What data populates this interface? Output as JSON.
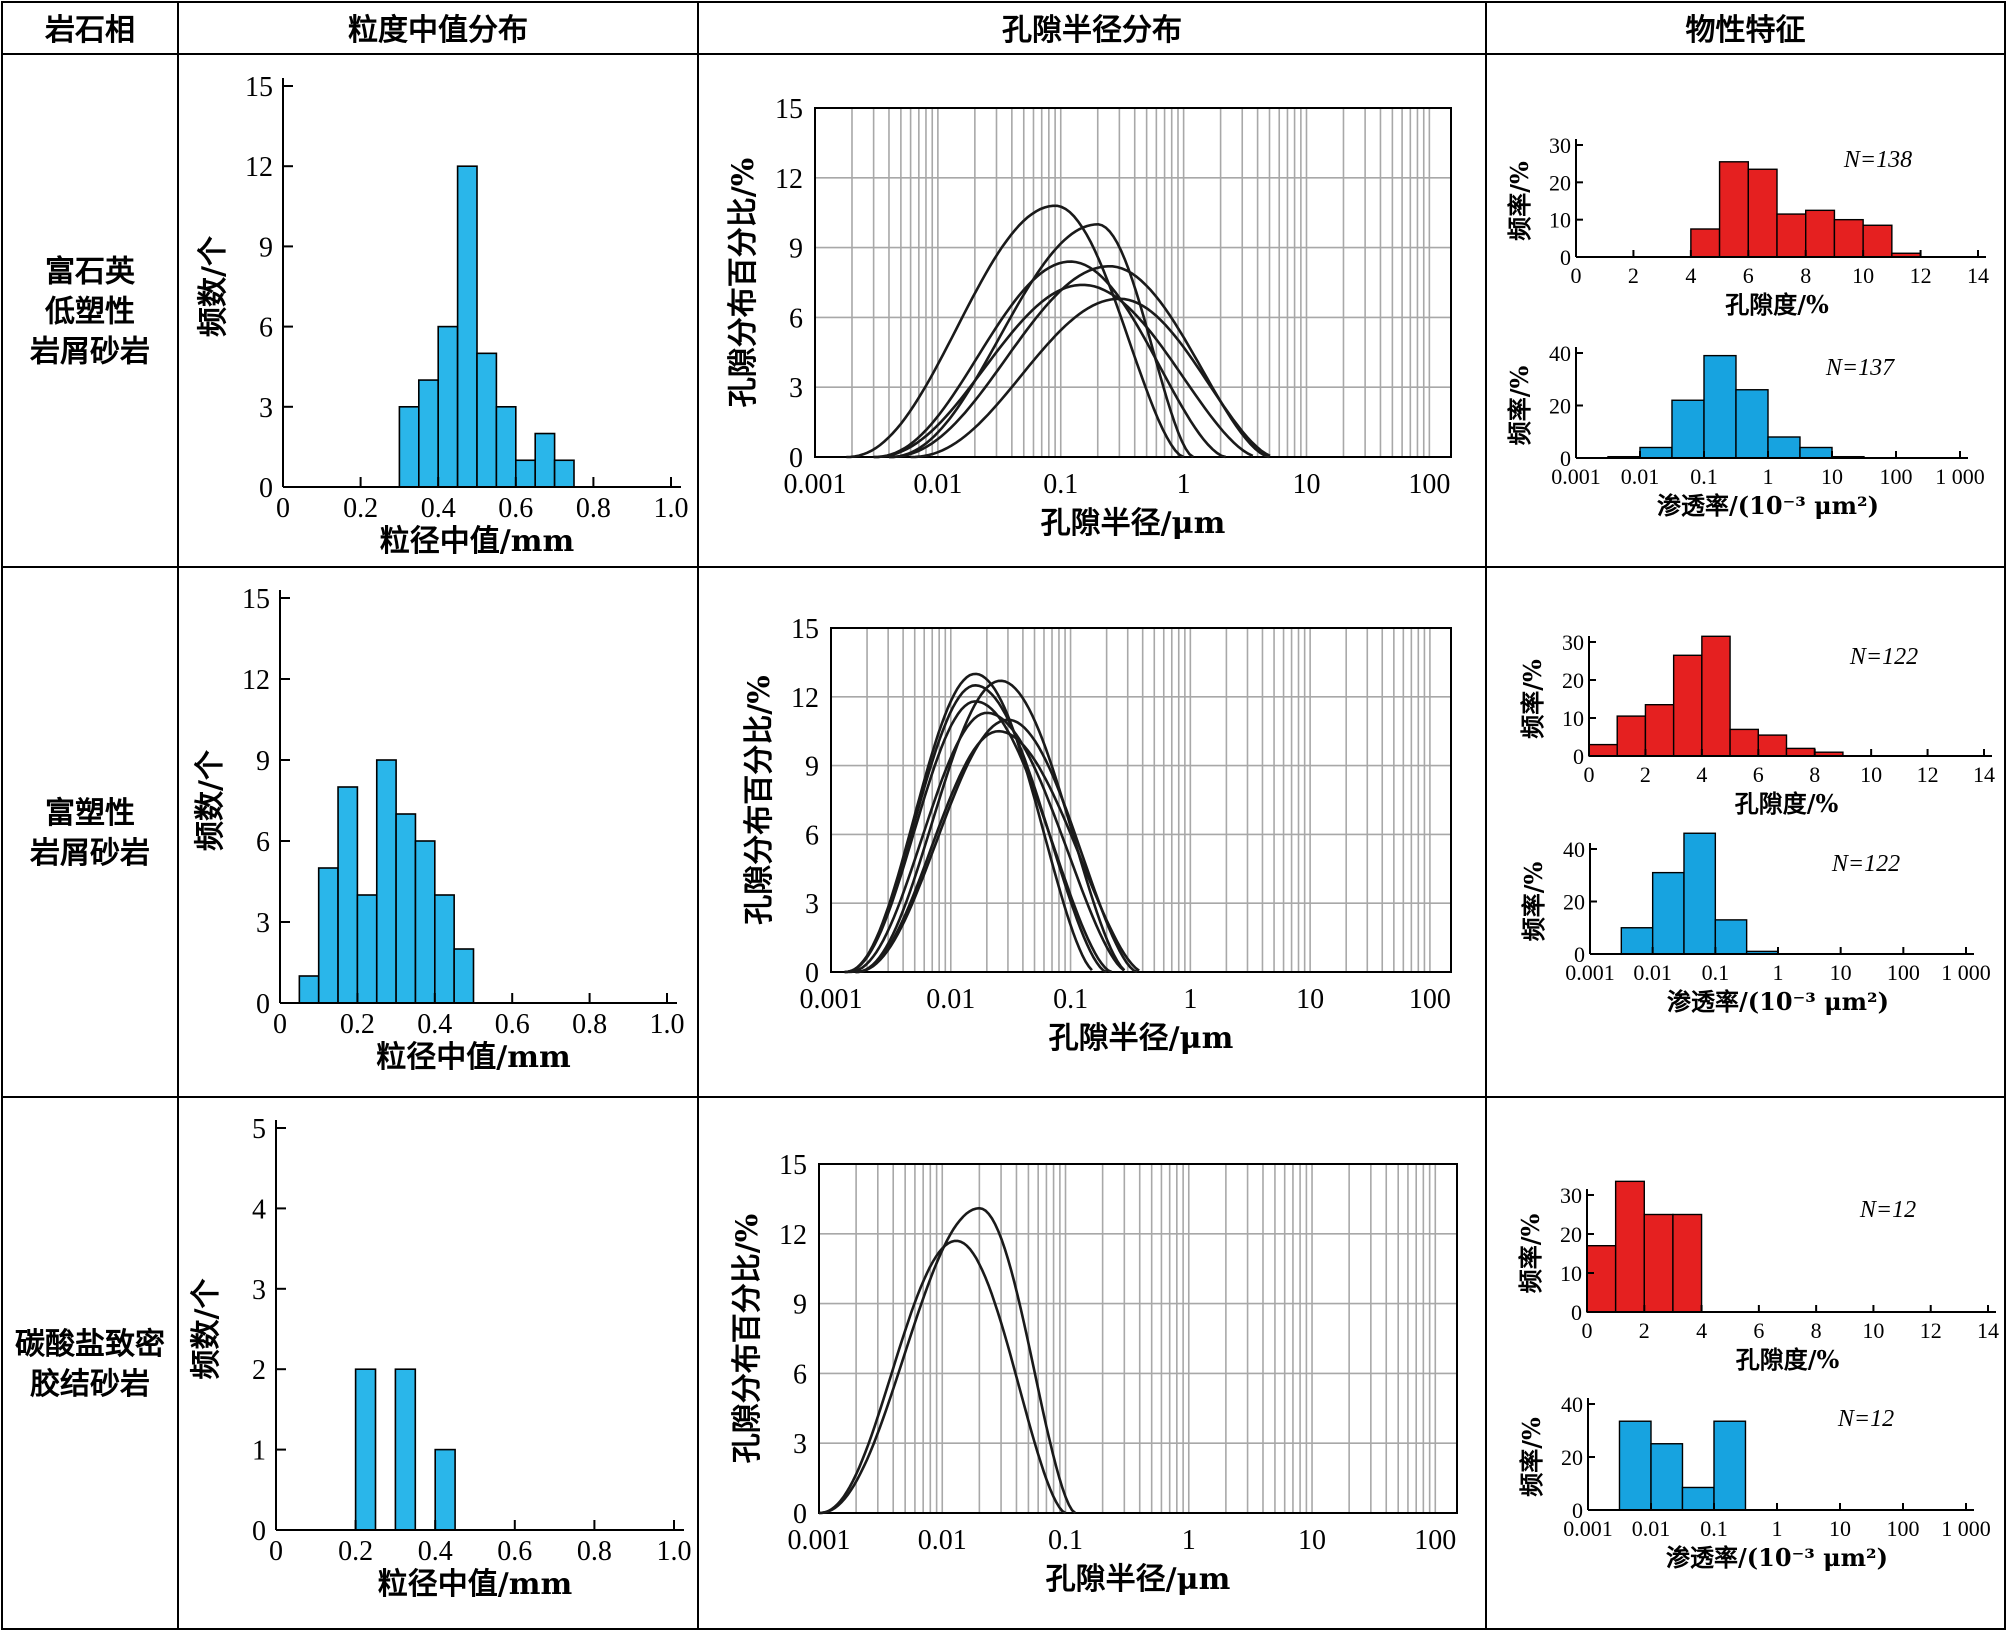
{
  "table": {
    "headers": [
      "岩石相",
      "粒度中值分布",
      "孔隙半径分布",
      "物性特征"
    ]
  },
  "rows": [
    {
      "facies_lines": [
        "富石英",
        "低塑性",
        "岩屑砂岩"
      ],
      "grain": {
        "type": "bar",
        "xlabel": "粒径中值/mm",
        "ylabel": "频数/个",
        "xlim": [
          0,
          1.0
        ],
        "ylim": [
          0,
          15
        ],
        "xticks": [
          "0",
          "0.2",
          "0.4",
          "0.6",
          "0.8",
          "1.0"
        ],
        "yticks": [
          "0",
          "3",
          "6",
          "9",
          "12",
          "15"
        ],
        "bin_width": 0.05,
        "bins": [
          {
            "x": 0.3,
            "y": 3
          },
          {
            "x": 0.35,
            "y": 4
          },
          {
            "x": 0.4,
            "y": 6
          },
          {
            "x": 0.45,
            "y": 12
          },
          {
            "x": 0.5,
            "y": 5
          },
          {
            "x": 0.55,
            "y": 3
          },
          {
            "x": 0.6,
            "y": 1
          },
          {
            "x": 0.65,
            "y": 2
          },
          {
            "x": 0.7,
            "y": 1
          }
        ],
        "color": "#2ab6ea"
      },
      "pore": {
        "type": "line",
        "xlabel": "孔隙半径/μm",
        "ylabel": "孔隙分布百分比/%",
        "xscale": "log",
        "xlim": [
          0.001,
          150
        ],
        "ylim": [
          0,
          15
        ],
        "xticks": [
          "0.001",
          "0.01",
          "0.1",
          "1",
          "10",
          "100"
        ],
        "yticks": [
          "0",
          "3",
          "6",
          "9",
          "12",
          "15"
        ],
        "curves": [
          {
            "peak_x": 0.09,
            "peak_y": 10.8,
            "lo": 0.0018,
            "hi": 1.0
          },
          {
            "peak_x": 0.2,
            "peak_y": 10.0,
            "lo": 0.004,
            "hi": 1.2
          },
          {
            "peak_x": 0.12,
            "peak_y": 8.4,
            "lo": 0.003,
            "hi": 2.2
          },
          {
            "peak_x": 0.25,
            "peak_y": 8.2,
            "lo": 0.004,
            "hi": 5.0
          },
          {
            "peak_x": 0.15,
            "peak_y": 7.4,
            "lo": 0.003,
            "hi": 4.0
          },
          {
            "peak_x": 0.3,
            "peak_y": 6.8,
            "lo": 0.006,
            "hi": 5.5
          }
        ]
      },
      "porosity": {
        "type": "bar",
        "xlabel": "孔隙度/%",
        "ylabel": "频率/%",
        "n_label": "N=138",
        "xlim": [
          0,
          14
        ],
        "ylim": [
          0,
          30
        ],
        "xticks": [
          "0",
          "2",
          "4",
          "6",
          "8",
          "10",
          "12",
          "14"
        ],
        "yticks": [
          "0",
          "10",
          "20",
          "30"
        ],
        "bin_width": 1,
        "bins": [
          {
            "x": 4,
            "y": 7.5
          },
          {
            "x": 5,
            "y": 25.5
          },
          {
            "x": 6,
            "y": 23.5
          },
          {
            "x": 7,
            "y": 11.5
          },
          {
            "x": 8,
            "y": 12.5
          },
          {
            "x": 9,
            "y": 10
          },
          {
            "x": 10,
            "y": 8.5
          },
          {
            "x": 11,
            "y": 1
          }
        ],
        "color": "#e52020"
      },
      "perm": {
        "type": "bar",
        "xlabel": "渗透率/(10⁻³ μm²)",
        "ylabel": "频率/%",
        "n_label": "N=137",
        "xscale": "log",
        "xlim": [
          0.001,
          1000
        ],
        "ylim": [
          0,
          40
        ],
        "xticks": [
          "0.001",
          "0.01",
          "0.1",
          "1",
          "10",
          "100",
          "1 000"
        ],
        "yticks": [
          "0",
          "20",
          "40"
        ],
        "bins": [
          {
            "lo": 0.00316,
            "hi": 0.01,
            "y": 0.5
          },
          {
            "lo": 0.01,
            "hi": 0.0316,
            "y": 4
          },
          {
            "lo": 0.0316,
            "hi": 0.1,
            "y": 22
          },
          {
            "lo": 0.1,
            "hi": 0.316,
            "y": 39
          },
          {
            "lo": 0.316,
            "hi": 1,
            "y": 26
          },
          {
            "lo": 1,
            "hi": 3.16,
            "y": 8
          },
          {
            "lo": 3.16,
            "hi": 10,
            "y": 4
          },
          {
            "lo": 10,
            "hi": 31.6,
            "y": 0.5
          }
        ],
        "color": "#17a3e0"
      }
    },
    {
      "facies_lines": [
        "富塑性",
        "岩屑砂岩"
      ],
      "grain": {
        "type": "bar",
        "xlabel": "粒径中值/mm",
        "ylabel": "频数/个",
        "xlim": [
          0,
          1.0
        ],
        "ylim": [
          0,
          15
        ],
        "xticks": [
          "0",
          "0.2",
          "0.4",
          "0.6",
          "0.8",
          "1.0"
        ],
        "yticks": [
          "0",
          "3",
          "6",
          "9",
          "12",
          "15"
        ],
        "bin_width": 0.05,
        "bins": [
          {
            "x": 0.05,
            "y": 1
          },
          {
            "x": 0.1,
            "y": 5
          },
          {
            "x": 0.15,
            "y": 8
          },
          {
            "x": 0.2,
            "y": 4
          },
          {
            "x": 0.25,
            "y": 9
          },
          {
            "x": 0.3,
            "y": 7
          },
          {
            "x": 0.35,
            "y": 6
          },
          {
            "x": 0.4,
            "y": 4
          },
          {
            "x": 0.45,
            "y": 2
          }
        ],
        "color": "#2ab6ea"
      },
      "pore": {
        "type": "line",
        "xlabel": "孔隙半径/μm",
        "ylabel": "孔隙分布百分比/%",
        "xscale": "log",
        "xlim": [
          0.001,
          150
        ],
        "ylim": [
          0,
          15
        ],
        "xticks": [
          "0.001",
          "0.01",
          "0.1",
          "1",
          "10",
          "100"
        ],
        "yticks": [
          "0",
          "3",
          "6",
          "9",
          "12",
          "15"
        ],
        "curves": [
          {
            "peak_x": 0.016,
            "peak_y": 13.0,
            "lo": 0.0013,
            "hi": 0.16
          },
          {
            "peak_x": 0.016,
            "peak_y": 12.5,
            "lo": 0.0013,
            "hi": 0.2
          },
          {
            "peak_x": 0.026,
            "peak_y": 12.7,
            "lo": 0.0016,
            "hi": 0.3
          },
          {
            "peak_x": 0.016,
            "peak_y": 11.8,
            "lo": 0.0013,
            "hi": 0.22
          },
          {
            "peak_x": 0.02,
            "peak_y": 11.3,
            "lo": 0.0014,
            "hi": 0.3
          },
          {
            "peak_x": 0.03,
            "peak_y": 11.0,
            "lo": 0.0016,
            "hi": 0.36
          },
          {
            "peak_x": 0.025,
            "peak_y": 10.5,
            "lo": 0.0016,
            "hi": 0.4
          }
        ]
      },
      "porosity": {
        "type": "bar",
        "xlabel": "孔隙度/%",
        "ylabel": "频率/%",
        "n_label": "N=122",
        "xlim": [
          0,
          14
        ],
        "ylim": [
          0,
          30
        ],
        "xticks": [
          "0",
          "2",
          "4",
          "6",
          "8",
          "10",
          "12",
          "14"
        ],
        "yticks": [
          "0",
          "10",
          "20",
          "30"
        ],
        "bin_width": 1,
        "bins": [
          {
            "x": 0,
            "y": 3
          },
          {
            "x": 1,
            "y": 10.5
          },
          {
            "x": 2,
            "y": 13.5
          },
          {
            "x": 3,
            "y": 26.5
          },
          {
            "x": 4,
            "y": 31.5
          },
          {
            "x": 5,
            "y": 7
          },
          {
            "x": 6,
            "y": 5.5
          },
          {
            "x": 7,
            "y": 2
          },
          {
            "x": 8,
            "y": 1
          }
        ],
        "color": "#e52020"
      },
      "perm": {
        "type": "bar",
        "xlabel": "渗透率/(10⁻³ μm²)",
        "ylabel": "频率/%",
        "n_label": "N=122",
        "xscale": "log",
        "xlim": [
          0.001,
          1000
        ],
        "ylim": [
          0,
          40
        ],
        "xticks": [
          "0.001",
          "0.01",
          "0.1",
          "1",
          "10",
          "100",
          "1 000"
        ],
        "yticks": [
          "0",
          "20",
          "40"
        ],
        "bins": [
          {
            "lo": 0.00316,
            "hi": 0.01,
            "y": 10
          },
          {
            "lo": 0.01,
            "hi": 0.0316,
            "y": 31
          },
          {
            "lo": 0.0316,
            "hi": 0.1,
            "y": 46
          },
          {
            "lo": 0.1,
            "hi": 0.316,
            "y": 13
          },
          {
            "lo": 0.316,
            "hi": 1,
            "y": 1
          }
        ],
        "color": "#17a3e0"
      }
    },
    {
      "facies_lines": [
        "碳酸盐致密",
        "胶结砂岩"
      ],
      "grain": {
        "type": "bar",
        "xlabel": "粒径中值/mm",
        "ylabel": "频数/个",
        "xlim": [
          0,
          1.0
        ],
        "ylim": [
          0,
          5
        ],
        "xticks": [
          "0",
          "0.2",
          "0.4",
          "0.6",
          "0.8",
          "1.0"
        ],
        "yticks": [
          "0",
          "1",
          "2",
          "3",
          "4",
          "5"
        ],
        "bin_width": 0.05,
        "bins": [
          {
            "x": 0.2,
            "y": 2
          },
          {
            "x": 0.3,
            "y": 2
          },
          {
            "x": 0.4,
            "y": 1
          }
        ],
        "color": "#2ab6ea"
      },
      "pore": {
        "type": "line",
        "xlabel": "孔隙半径/μm",
        "ylabel": "孔隙分布百分比/%",
        "xscale": "log",
        "xlim": [
          0.001,
          150
        ],
        "ylim": [
          0,
          15
        ],
        "xticks": [
          "0.001",
          "0.01",
          "0.1",
          "1",
          "10",
          "100"
        ],
        "yticks": [
          "0",
          "3",
          "6",
          "9",
          "12",
          "15"
        ],
        "curves": [
          {
            "peak_x": 0.013,
            "peak_y": 11.7,
            "lo": 0.001,
            "hi": 0.1
          },
          {
            "peak_x": 0.02,
            "peak_y": 13.1,
            "lo": 0.001,
            "hi": 0.12
          }
        ]
      },
      "porosity": {
        "type": "bar",
        "xlabel": "孔隙度/%",
        "ylabel": "频率/%",
        "n_label": "N=12",
        "xlim": [
          0,
          14
        ],
        "ylim": [
          0,
          30
        ],
        "xticks": [
          "0",
          "2",
          "4",
          "6",
          "8",
          "10",
          "12",
          "14"
        ],
        "yticks": [
          "0",
          "10",
          "20",
          "30"
        ],
        "bin_width": 1,
        "bins": [
          {
            "x": 0,
            "y": 17
          },
          {
            "x": 1,
            "y": 33.5
          },
          {
            "x": 2,
            "y": 25
          },
          {
            "x": 3,
            "y": 25
          }
        ],
        "color": "#e52020"
      },
      "perm": {
        "type": "bar",
        "xlabel": "渗透率/(10⁻³ μm²)",
        "ylabel": "频率/%",
        "n_label": "N=12",
        "xscale": "log",
        "xlim": [
          0.001,
          1000
        ],
        "ylim": [
          0,
          40
        ],
        "xticks": [
          "0.001",
          "0.01",
          "0.1",
          "1",
          "10",
          "100",
          "1 000"
        ],
        "yticks": [
          "0",
          "20",
          "40"
        ],
        "bins": [
          {
            "lo": 0.00316,
            "hi": 0.01,
            "y": 33.5
          },
          {
            "lo": 0.01,
            "hi": 0.0316,
            "y": 25
          },
          {
            "lo": 0.0316,
            "hi": 0.1,
            "y": 8.5
          },
          {
            "lo": 0.1,
            "hi": 0.316,
            "y": 33.5
          }
        ],
        "color": "#17a3e0"
      }
    }
  ]
}
